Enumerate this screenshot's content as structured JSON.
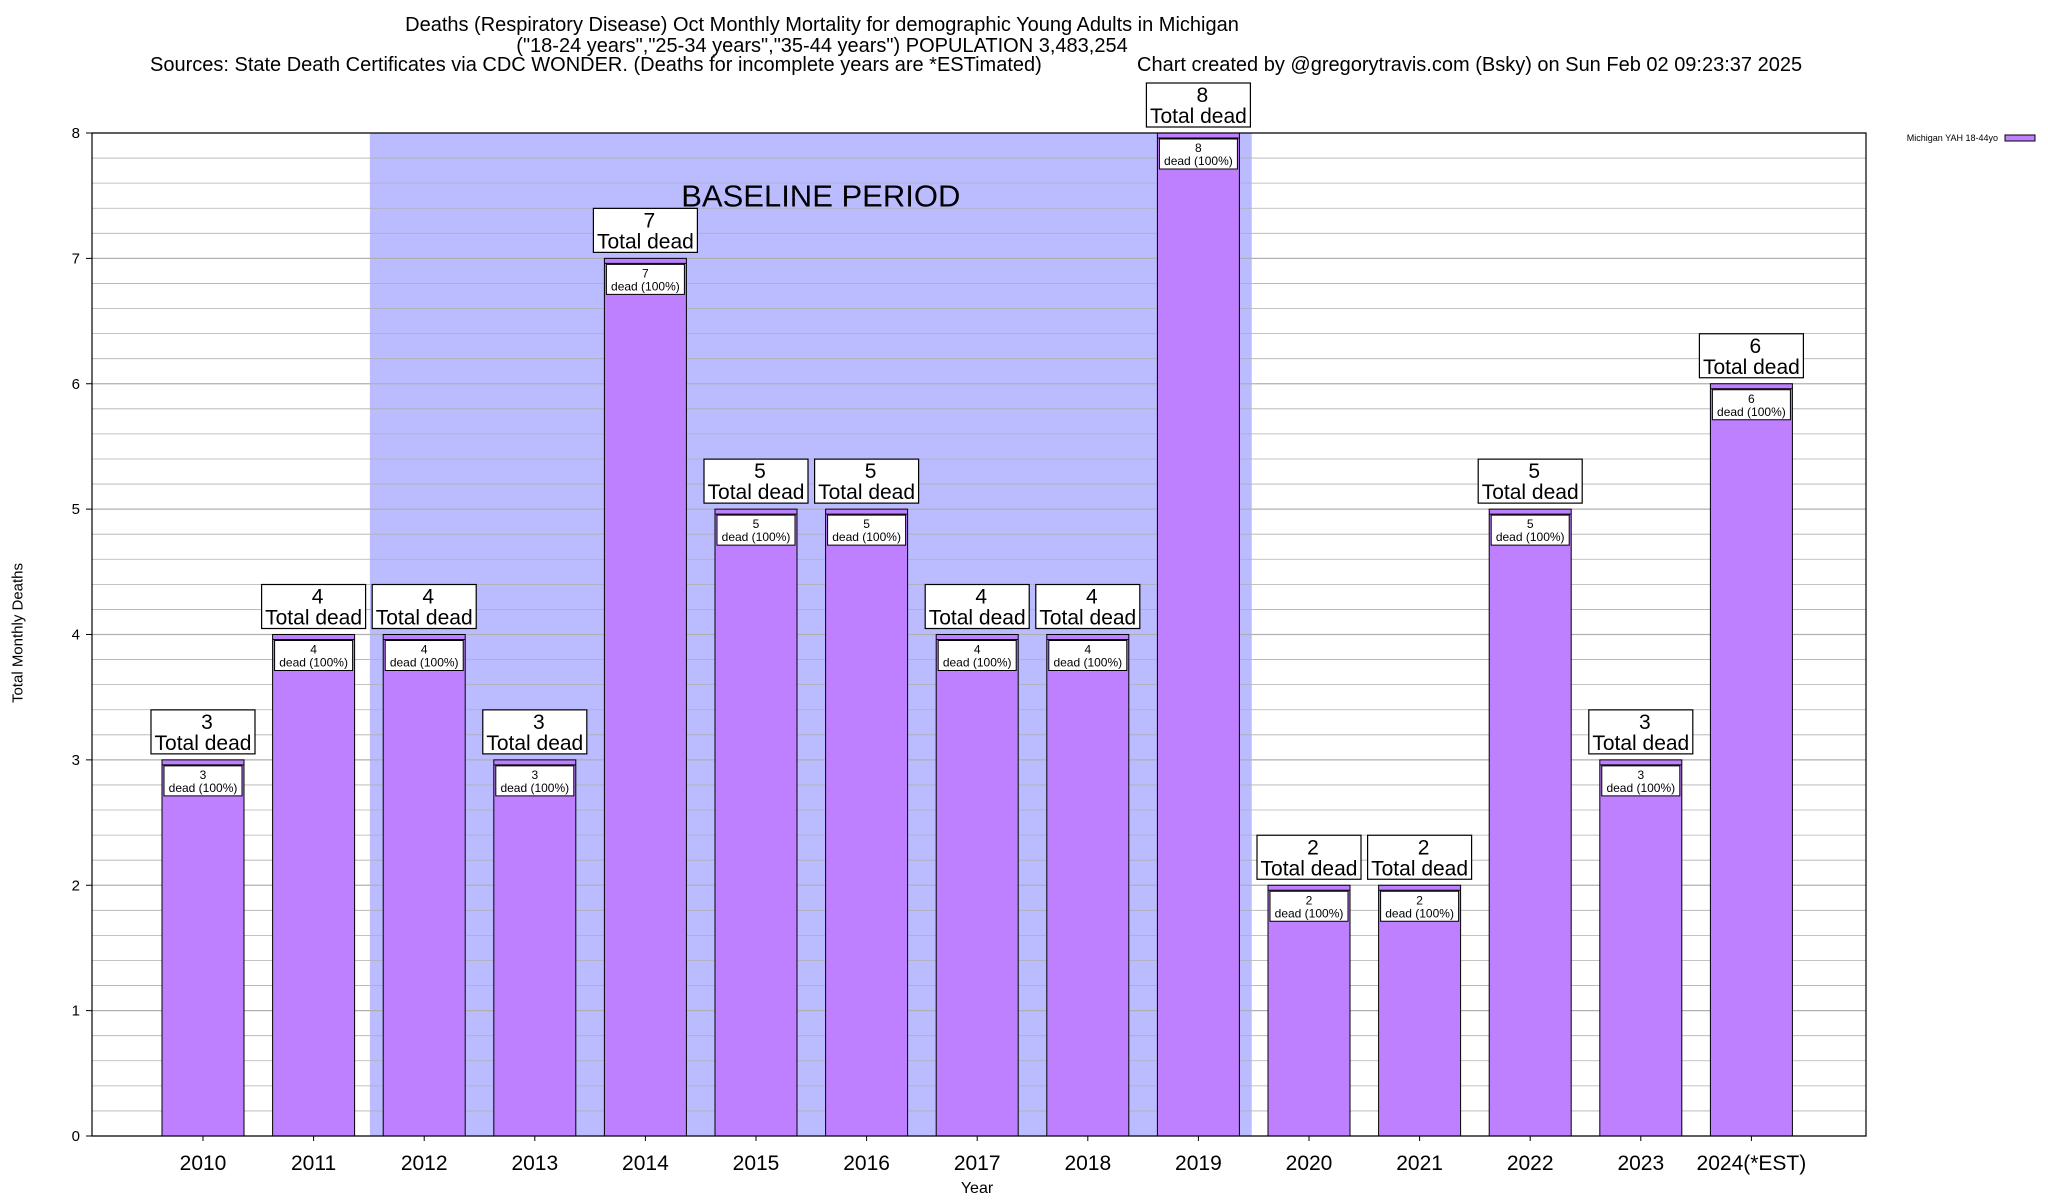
{
  "header": {
    "title_line1": "Deaths (Respiratory Disease) Oct Monthly Mortality for demographic Young Adults in Michigan",
    "title_line2": "(\"18-24 years\",\"25-34 years\",\"35-44 years\") POPULATION 3,483,254",
    "sources": "Sources: State Death Certificates via CDC WONDER. (Deaths for incomplete years are *ESTimated)",
    "credit": "Chart created by @gregorytravis.com (Bsky) on Sun Feb 02 09:23:37 2025"
  },
  "chart_data": {
    "type": "bar",
    "categories": [
      "2010",
      "2011",
      "2012",
      "2013",
      "2014",
      "2015",
      "2016",
      "2017",
      "2018",
      "2019",
      "2020",
      "2021",
      "2022",
      "2023",
      "2024(*EST)"
    ],
    "series": [
      {
        "name": "Michigan YAH 18-44yo",
        "values": [
          3,
          4,
          4,
          3,
          7,
          5,
          5,
          4,
          4,
          8,
          2,
          2,
          5,
          3,
          6
        ]
      }
    ],
    "total_label": "Total dead",
    "bar_label_suffix": "dead (100%)",
    "xlabel": "Year",
    "ylabel": "Total Monthly Deaths",
    "ylim": [
      0,
      8
    ],
    "yticks": [
      0,
      1,
      2,
      3,
      4,
      5,
      6,
      7,
      8
    ],
    "grid": true,
    "legend_position": "top-right",
    "baseline": {
      "label": "BASELINE PERIOD",
      "from": "2012",
      "to": "2019"
    },
    "colors": {
      "bar": "#bf80ff",
      "baseline": "#bbbbff",
      "grid": "#b0b0b0"
    }
  }
}
